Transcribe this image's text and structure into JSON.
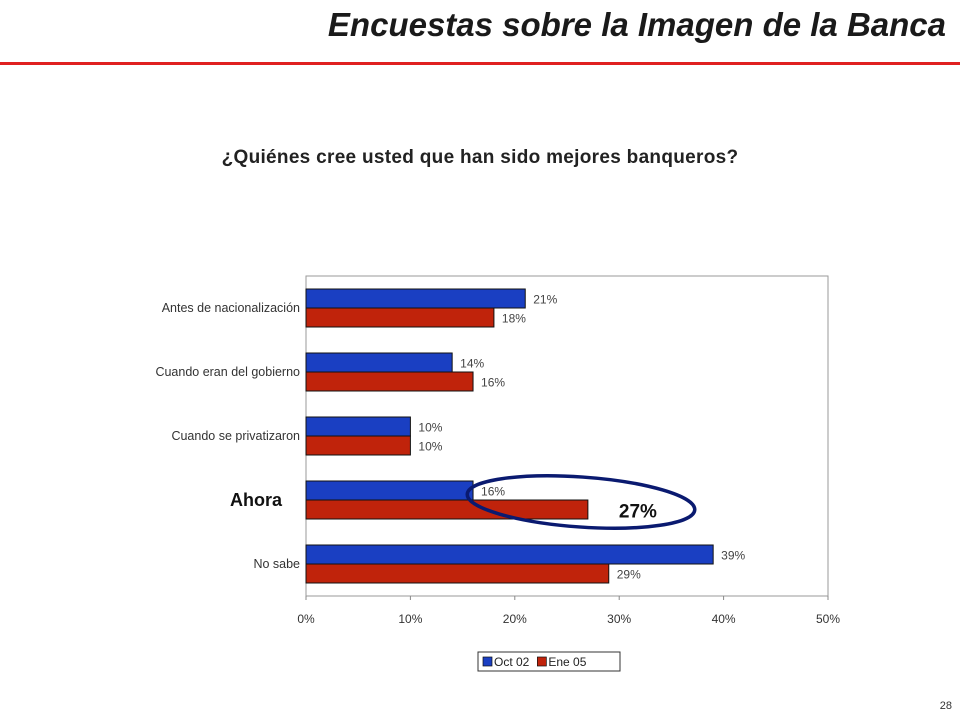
{
  "slide": {
    "title": "Encuestas sobre la Imagen de la Banca",
    "question": "¿Quiénes cree usted que han sido mejores banqueros?",
    "page_number": "28",
    "accent_color": "#e02020"
  },
  "chart_data": {
    "type": "bar",
    "orientation": "horizontal",
    "categories": [
      "Antes de nacionalización",
      "Cuando eran del gobierno",
      "Cuando se privatizaron",
      "Ahora",
      "No sabe"
    ],
    "series": [
      {
        "name": "Oct 02",
        "color": "#1a3fc2",
        "values": [
          21,
          14,
          10,
          16,
          39
        ],
        "labels": [
          "21%",
          "14%",
          "10%",
          "16%",
          "39%"
        ]
      },
      {
        "name": "Ene 05",
        "color": "#c0230b",
        "values": [
          18,
          16,
          10,
          27,
          29
        ],
        "labels": [
          "18%",
          "16%",
          "10%",
          "27%",
          "29%"
        ]
      }
    ],
    "xlim": [
      0,
      50
    ],
    "xticks": [
      "0%",
      "10%",
      "20%",
      "30%",
      "40%",
      "50%"
    ],
    "grid": false,
    "legend": "bottom-center",
    "highlight": {
      "category": "Ahora",
      "series": "Ene 05",
      "label": "27%"
    }
  }
}
